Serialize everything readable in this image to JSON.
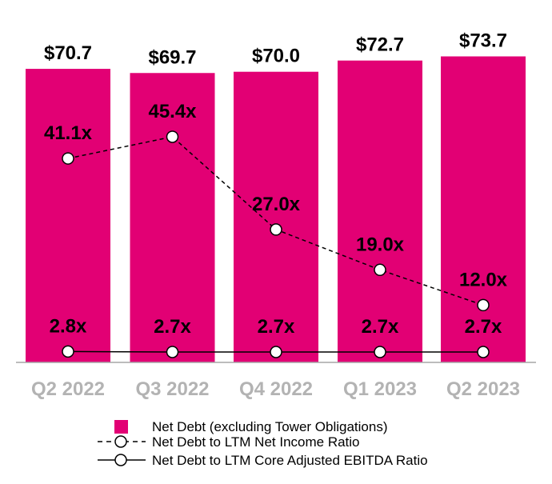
{
  "chart_data": {
    "type": "bar",
    "categories": [
      "Q2 2022",
      "Q3 2022",
      "Q4 2022",
      "Q1 2023",
      "Q2 2023"
    ],
    "series": [
      {
        "name": "Net Debt (excluding Tower Obligations)",
        "type": "bar",
        "values": [
          70.7,
          69.7,
          70.0,
          72.7,
          73.7
        ],
        "labels": [
          "$70.7",
          "$69.7",
          "$70.0",
          "$72.7",
          "$73.7"
        ],
        "color": "#E20074"
      },
      {
        "name": "Net Debt to LTM Net Income Ratio",
        "type": "line",
        "style": "dashed",
        "values": [
          41.1,
          45.4,
          27.0,
          19.0,
          12.0
        ],
        "labels": [
          "41.1x",
          "45.4x",
          "27.0x",
          "19.0x",
          "12.0x"
        ],
        "color": "#000000"
      },
      {
        "name": "Net Debt to LTM Core Adjusted EBITDA Ratio",
        "type": "line",
        "style": "solid",
        "values": [
          2.8,
          2.7,
          2.7,
          2.7,
          2.7
        ],
        "labels": [
          "2.8x",
          "2.7x",
          "2.7x",
          "2.7x",
          "2.7x"
        ],
        "color": "#000000"
      }
    ],
    "legend_position": "bottom",
    "grid": false
  }
}
